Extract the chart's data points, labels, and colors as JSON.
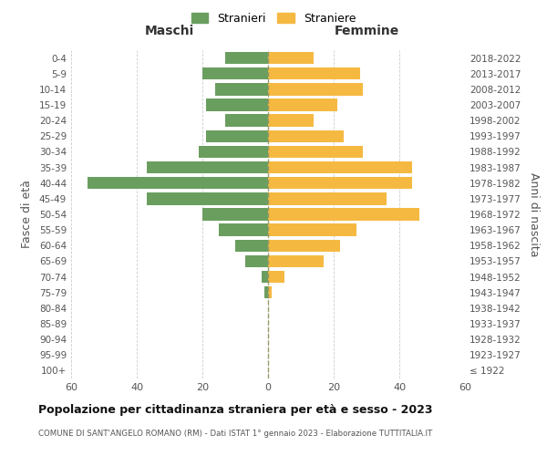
{
  "age_groups": [
    "100+",
    "95-99",
    "90-94",
    "85-89",
    "80-84",
    "75-79",
    "70-74",
    "65-69",
    "60-64",
    "55-59",
    "50-54",
    "45-49",
    "40-44",
    "35-39",
    "30-34",
    "25-29",
    "20-24",
    "15-19",
    "10-14",
    "5-9",
    "0-4"
  ],
  "birth_years": [
    "≤ 1922",
    "1923-1927",
    "1928-1932",
    "1933-1937",
    "1938-1942",
    "1943-1947",
    "1948-1952",
    "1953-1957",
    "1958-1962",
    "1963-1967",
    "1968-1972",
    "1973-1977",
    "1978-1982",
    "1983-1987",
    "1988-1992",
    "1993-1997",
    "1998-2002",
    "2003-2007",
    "2008-2012",
    "2013-2017",
    "2018-2022"
  ],
  "males": [
    0,
    0,
    0,
    0,
    0,
    1,
    2,
    7,
    10,
    15,
    20,
    37,
    55,
    37,
    21,
    19,
    13,
    19,
    16,
    20,
    13
  ],
  "females": [
    0,
    0,
    0,
    0,
    0,
    1,
    5,
    17,
    22,
    27,
    46,
    36,
    44,
    44,
    29,
    23,
    14,
    21,
    29,
    28,
    14
  ],
  "male_color": "#6a9e5f",
  "female_color": "#f5b942",
  "title": "Popolazione per cittadinanza straniera per età e sesso - 2023",
  "subtitle": "COMUNE DI SANT'ANGELO ROMANO (RM) - Dati ISTAT 1° gennaio 2023 - Elaborazione TUTTITALIA.IT",
  "left_label": "Maschi",
  "right_label": "Femmine",
  "y_label": "Fasce di età",
  "y_label_right": "Anni di nascita",
  "legend_male": "Stranieri",
  "legend_female": "Straniere",
  "xlim": 60,
  "background_color": "#ffffff",
  "grid_color": "#cccccc"
}
